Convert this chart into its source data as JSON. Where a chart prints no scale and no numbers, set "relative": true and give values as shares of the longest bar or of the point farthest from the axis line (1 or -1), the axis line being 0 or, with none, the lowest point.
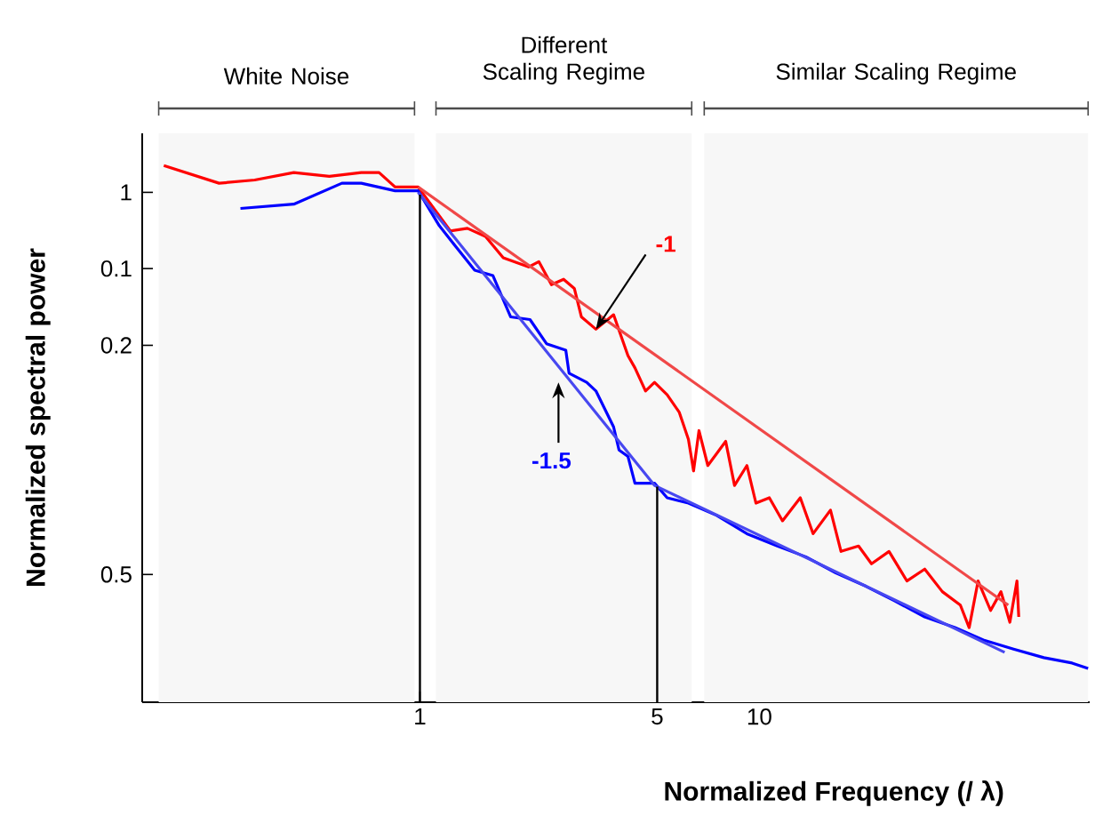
{
  "chart_data": {
    "type": "line",
    "xlabel": "Normalized Frequency (/ λ)",
    "ylabel": "Normalized spectral power",
    "log": "x",
    "xlim": [
      0.152,
      94
    ],
    "xticks": [
      1,
      5,
      10
    ],
    "relative": true,
    "marker": "none",
    "grid": false,
    "series": [
      {
        "color": "#ff0000",
        "x": [
          0.176,
          0.256,
          0.326,
          0.425,
          0.541,
          0.672,
          0.758,
          0.845,
          0.988,
          1.23,
          1.38,
          1.56,
          1.76,
          2.09,
          2.24,
          2.44,
          2.65,
          2.85,
          2.99,
          3.3,
          3.72,
          4.1,
          4.3,
          4.62,
          4.91,
          5.35,
          5.81,
          6.18,
          6.4,
          6.64,
          7.05,
          7.96,
          8.45,
          9.19,
          9.77,
          10.7,
          11.7,
          13.2,
          14.4,
          16.2,
          17.4,
          19.6,
          21.4,
          24.1,
          27.2,
          30.7,
          34.6,
          39.1,
          41.5,
          44.1,
          48.0,
          51.5,
          54.7,
          57.4,
          58.1
        ],
        "values": [
          1.0,
          0.967,
          0.973,
          0.987,
          0.98,
          0.987,
          0.987,
          0.96,
          0.96,
          0.878,
          0.883,
          0.868,
          0.828,
          0.811,
          0.821,
          0.778,
          0.788,
          0.771,
          0.718,
          0.695,
          0.722,
          0.646,
          0.623,
          0.58,
          0.596,
          0.573,
          0.54,
          0.49,
          0.431,
          0.506,
          0.441,
          0.486,
          0.404,
          0.441,
          0.371,
          0.381,
          0.338,
          0.381,
          0.314,
          0.358,
          0.281,
          0.291,
          0.258,
          0.281,
          0.226,
          0.248,
          0.206,
          0.181,
          0.139,
          0.226,
          0.171,
          0.206,
          0.149,
          0.226,
          0.159
        ]
      },
      {
        "color": "#0000ff",
        "x": [
          0.296,
          0.425,
          0.589,
          0.672,
          0.845,
          0.988,
          1.14,
          1.29,
          1.45,
          1.64,
          1.85,
          2.11,
          2.36,
          2.69,
          2.75,
          3.1,
          3.3,
          3.72,
          3.86,
          4.1,
          4.3,
          4.91,
          5.35,
          6.18,
          7.49,
          9.19,
          11.3,
          13.7,
          16.8,
          20.6,
          25.0,
          30.7,
          37.7,
          45.7,
          56.1,
          68.9,
          83.4,
          93.0
        ],
        "values": [
          0.92,
          0.928,
          0.967,
          0.967,
          0.953,
          0.953,
          0.888,
          0.845,
          0.805,
          0.795,
          0.718,
          0.713,
          0.668,
          0.656,
          0.613,
          0.596,
          0.58,
          0.513,
          0.47,
          0.458,
          0.408,
          0.408,
          0.381,
          0.371,
          0.348,
          0.314,
          0.291,
          0.271,
          0.241,
          0.216,
          0.189,
          0.159,
          0.139,
          0.116,
          0.099,
          0.083,
          0.073,
          0.063
        ]
      },
      {
        "color": "#f04848",
        "x": [
          0.988,
          54.1
        ],
        "values": [
          0.96,
          0.181
        ]
      },
      {
        "color": "#4848f0",
        "x": [
          0.988,
          4.91,
          52.8
        ],
        "values": [
          0.95,
          0.404,
          0.093
        ]
      }
    ],
    "ref_lines": [
      {
        "axis": "x",
        "value": 1,
        "color": "#000000"
      },
      {
        "axis": "x",
        "value": 5,
        "color": "#000000"
      }
    ],
    "bands": [
      {
        "axis": "x",
        "from": 0.17,
        "to": 0.964,
        "label": "White Noise"
      },
      {
        "axis": "x",
        "from": 1.115,
        "to": 6.32,
        "label": "Different Scaling Regime"
      },
      {
        "axis": "x",
        "from": 6.88,
        "to": 93,
        "label": "Similar Scaling Regime"
      }
    ],
    "annotations": [
      {
        "text": "-1",
        "x": 3.3,
        "y": 0.695
      },
      {
        "text": "-1.5",
        "x": 2.56,
        "y": 0.606
      },
      "1",
      "0.1",
      "0.2",
      "0.5"
    ]
  }
}
